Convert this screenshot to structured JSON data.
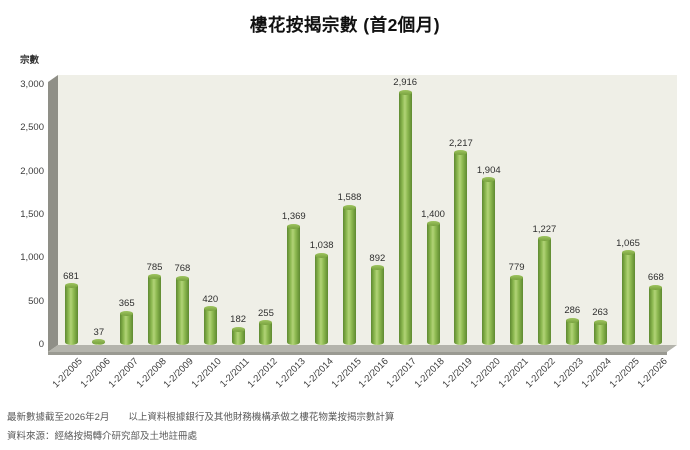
{
  "title": "樓花按揭宗數 (首2個月)",
  "chart_data": {
    "type": "bar",
    "bar_style": "3d-cylinder-vertical",
    "title": "樓花按揭宗數 (首2個月)",
    "xlabel": "",
    "ylabel": "宗數",
    "ylim": [
      0,
      3000
    ],
    "ytick_interval": 500,
    "yticks": [
      "0",
      "500",
      "1,000",
      "1,500",
      "2,000",
      "2,500",
      "3,000"
    ],
    "grid": false,
    "legend": "none",
    "categories": [
      "1-2/2005",
      "1-2/2006",
      "1-2/2007",
      "1-2/2008",
      "1-2/2009",
      "1-2/2010",
      "1-2/2011",
      "1-2/2012",
      "1-2/2013",
      "1-2/2014",
      "1-2/2015",
      "1-2/2016",
      "1-2/2017",
      "1-2/2018",
      "1-2/2019",
      "1-2/2020",
      "1-2/2021",
      "1-2/2022",
      "1-2/2023",
      "1-2/2024",
      "1-2/2025",
      "1-2/2026"
    ],
    "values": [
      681,
      37,
      365,
      785,
      768,
      420,
      182,
      255,
      1369,
      1038,
      1588,
      892,
      2916,
      1400,
      2217,
      1904,
      779,
      1227,
      286,
      263,
      1065,
      668
    ],
    "value_labels": [
      "681",
      "37",
      "365",
      "785",
      "768",
      "420",
      "182",
      "255",
      "1,369",
      "1,038",
      "1,588",
      "892",
      "2,916",
      "1,400",
      "2,217",
      "1,904",
      "779",
      "1,227",
      "286",
      "263",
      "1,065",
      "668"
    ]
  },
  "colors": {
    "bar_edge_dark": "#5e8a32",
    "bar_dark": "#6f9a3b",
    "bar_mid": "#8fbb53",
    "bar_light": "#b2d377",
    "cap_top": "#9ec45f",
    "cap_bottom": "#78a23f",
    "plot_bg": "#efefe7",
    "wall_side": "#8f8f87",
    "floor_top": "#b4b4ac",
    "floor_front": "#9a9a92",
    "text": "#333333"
  },
  "footer": {
    "line1": "最新數據截至2026年2月　　以上資料根據銀行及其他財務機構承做之樓花物業按揭宗數計算",
    "line2": "資料來源：經絡按揭轉介研究部及土地註冊處"
  }
}
